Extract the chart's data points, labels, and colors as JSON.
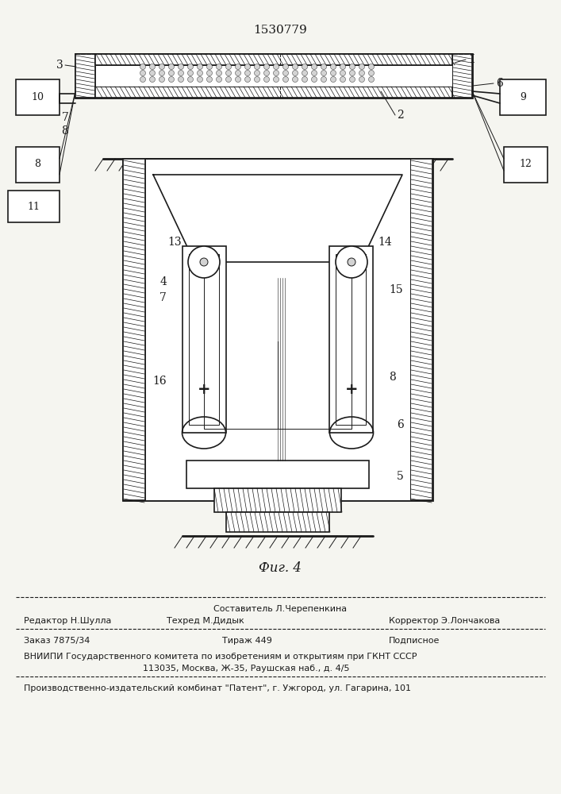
{
  "patent_number": "1530779",
  "figure_label": "Фиг. 4",
  "footer_lines": [
    {
      "center": "Составитель Л.Черепенкина"
    },
    {
      "left": "Редактор Н.Шулла",
      "center": "Техред М.Дидык",
      "right": "Корректор Э.Лончакова"
    },
    {
      "left": "Заказ 7875/34",
      "center": "Тираж 449",
      "right": "Подписное"
    },
    {
      "full": "ВНИИПИ Государственного комитета по изобретениям и открытиям при ГКНТ СССР"
    },
    {
      "full": "113035, Москва, Ж-35, Раушская наб., д. 4/5"
    },
    {
      "full": "Производственно-издательский комбинат \"Патент\", г. Ужгород, ул. Гагарина, 101"
    }
  ],
  "bg_color": "#f5f5f0",
  "line_color": "#1a1a1a",
  "hatch_color": "#333333"
}
